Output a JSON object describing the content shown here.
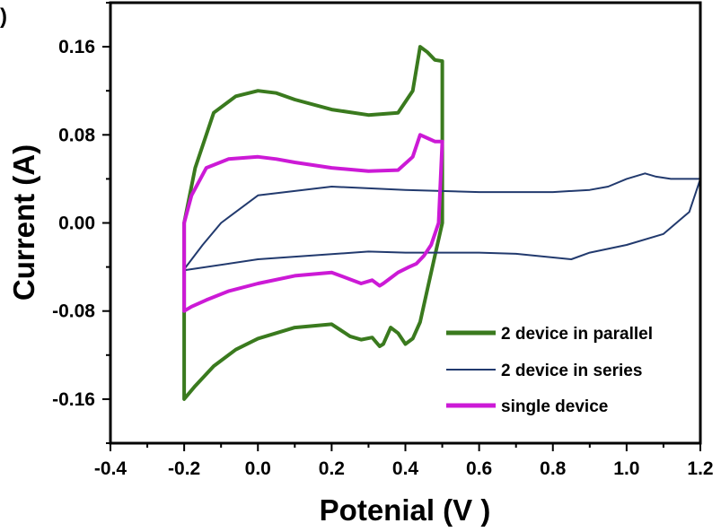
{
  "panel_label": ")",
  "chart_data": {
    "type": "line",
    "title": "",
    "xlabel": "Potenial (V )",
    "ylabel": "Current (A)",
    "xlim": [
      -0.4,
      1.2
    ],
    "ylim": [
      -0.2,
      0.2
    ],
    "x_ticks": [
      -0.4,
      -0.2,
      0.0,
      0.2,
      0.4,
      0.6,
      0.8,
      1.0,
      1.2
    ],
    "x_tick_labels": [
      "-0.4",
      "-0.2",
      "0.0",
      "0.2",
      "0.4",
      "0.6",
      "0.8",
      "1.0",
      "1.2"
    ],
    "y_ticks": [
      0.16,
      0.08,
      0.0,
      -0.08,
      -0.16
    ],
    "y_tick_labels": [
      "0.16",
      "0.08",
      "0.00",
      "-0.08",
      "-0.16"
    ],
    "grid": false,
    "legend_position": "bottom-right",
    "series": [
      {
        "name": "2 device in parallel",
        "color": "#3a7a1e",
        "x": [
          -0.2,
          -0.17,
          -0.12,
          -0.06,
          0.0,
          0.05,
          0.1,
          0.2,
          0.3,
          0.38,
          0.42,
          0.44,
          0.46,
          0.48,
          0.5,
          0.5,
          0.48,
          0.46,
          0.44,
          0.42,
          0.4,
          0.38,
          0.36,
          0.34,
          0.33,
          0.31,
          0.28,
          0.25,
          0.2,
          0.1,
          0.0,
          -0.06,
          -0.12,
          -0.17,
          -0.2,
          -0.2
        ],
        "y": [
          0.0,
          0.05,
          0.1,
          0.115,
          0.12,
          0.118,
          0.112,
          0.103,
          0.098,
          0.1,
          0.12,
          0.16,
          0.155,
          0.148,
          0.147,
          0.0,
          -0.03,
          -0.06,
          -0.09,
          -0.105,
          -0.11,
          -0.1,
          -0.095,
          -0.11,
          -0.112,
          -0.104,
          -0.106,
          -0.103,
          -0.092,
          -0.095,
          -0.105,
          -0.115,
          -0.13,
          -0.148,
          -0.16,
          0.0
        ]
      },
      {
        "name": "2 device in series",
        "color": "#223a6e",
        "x": [
          -0.2,
          -0.15,
          -0.1,
          0.0,
          0.2,
          0.4,
          0.6,
          0.8,
          0.9,
          0.95,
          1.0,
          1.05,
          1.08,
          1.12,
          1.2,
          1.17,
          1.1,
          1.0,
          0.9,
          0.85,
          0.7,
          0.6,
          0.5,
          0.4,
          0.3,
          0.0,
          -0.2
        ],
        "y": [
          -0.042,
          -0.02,
          0.0,
          0.025,
          0.033,
          0.03,
          0.028,
          0.028,
          0.03,
          0.033,
          0.04,
          0.045,
          0.042,
          0.04,
          0.04,
          0.01,
          -0.01,
          -0.02,
          -0.027,
          -0.033,
          -0.028,
          -0.027,
          -0.027,
          -0.027,
          -0.026,
          -0.033,
          -0.043
        ]
      },
      {
        "name": "single device",
        "color": "#cc1ad6",
        "x": [
          -0.2,
          -0.18,
          -0.14,
          -0.08,
          0.0,
          0.05,
          0.1,
          0.2,
          0.3,
          0.38,
          0.42,
          0.44,
          0.46,
          0.48,
          0.5,
          0.49,
          0.47,
          0.45,
          0.43,
          0.41,
          0.38,
          0.36,
          0.34,
          0.33,
          0.31,
          0.28,
          0.2,
          0.1,
          0.0,
          -0.08,
          -0.14,
          -0.18,
          -0.2,
          -0.2
        ],
        "y": [
          0.0,
          0.025,
          0.05,
          0.058,
          0.06,
          0.058,
          0.055,
          0.05,
          0.047,
          0.048,
          0.06,
          0.08,
          0.077,
          0.074,
          0.074,
          0.0,
          -0.02,
          -0.03,
          -0.037,
          -0.04,
          -0.045,
          -0.05,
          -0.055,
          -0.057,
          -0.052,
          -0.055,
          -0.045,
          -0.048,
          -0.055,
          -0.062,
          -0.07,
          -0.076,
          -0.08,
          0.0
        ]
      }
    ]
  }
}
